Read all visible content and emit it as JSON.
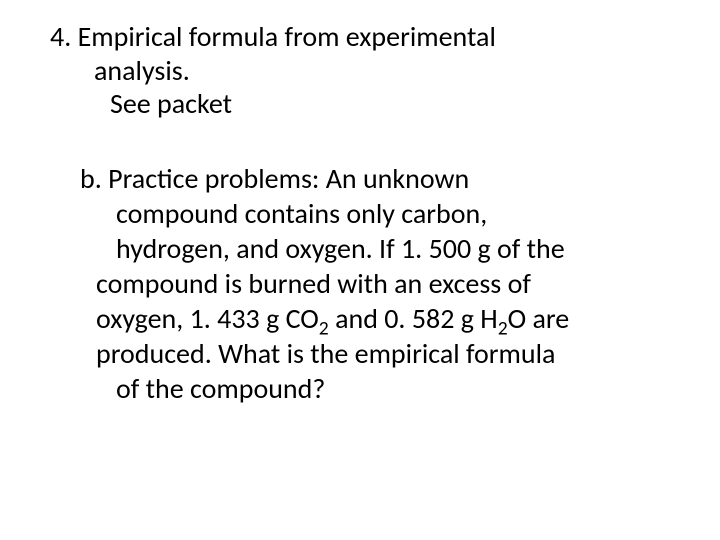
{
  "colors": {
    "background": "#ffffff",
    "text": "#000000"
  },
  "typography": {
    "font_family": "Calibri, Arial, sans-serif",
    "body_fontsize_pt": 21,
    "subscript_scale": 0.7,
    "line_height": 1.25
  },
  "item4": {
    "number": "4.",
    "line1_rest": "Empirical formula from experimental",
    "line2": "analysis.",
    "line3": "See packet"
  },
  "itemB": {
    "letter": "b.",
    "l1_rest": "Practice problems:  An unknown",
    "l2": "compound contains only carbon,",
    "l3": "hydrogen, and oxygen.  If 1. 500 g of the",
    "l4": "compound is burned with an excess of",
    "l5_pre": "oxygen, 1. 433 g CO",
    "l5_sub": "2",
    "l5_mid": " and 0. 582 g H",
    "l5_sub2": "2",
    "l5_post": "O are",
    "l6": "produced.  What is the empirical formula",
    "l7": "of the compound?"
  }
}
